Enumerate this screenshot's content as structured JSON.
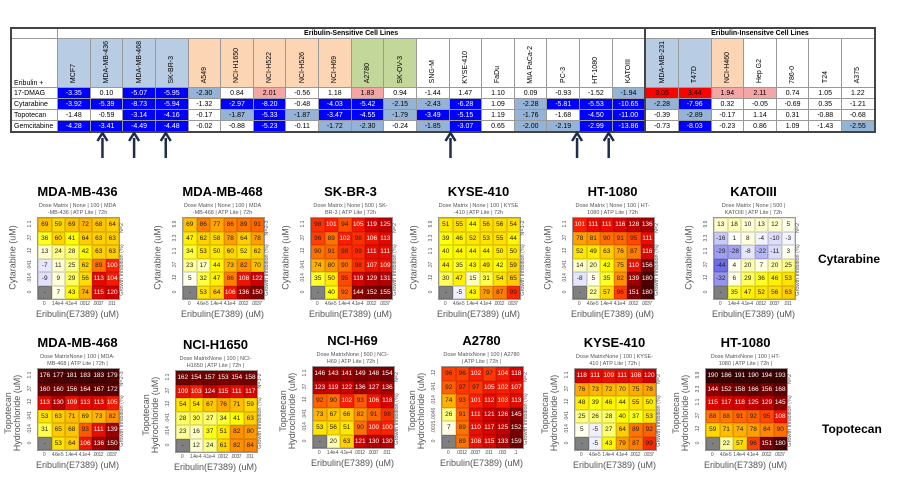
{
  "table": {
    "row_header": "Eribulin +",
    "group_sensitive": "Eribulin-Sensitive Cell Lines",
    "group_insensitive": "Eribulin-Insensitve Cell Lines",
    "columns": [
      "MCF7",
      "MDA-MB-436",
      "MDA-MB-468",
      "SK-BR-3",
      "A549",
      "NCI-H1650",
      "NCI-H522",
      "NCI-H526",
      "NCI-H69",
      "A2780",
      "SK-OV-3",
      "SNG-M",
      "KYSE-410",
      "FaDu",
      "MIA PaCa-2",
      "PC-3",
      "HT-1080",
      "KATOIII",
      "MDA-MB-231",
      "T47D",
      "NCI-H460",
      "Hep G2",
      "786-0",
      "T24",
      "A375"
    ],
    "sensitive_count": 18,
    "header_colors": [
      "#b8cce4",
      "#b8cce4",
      "#b8cce4",
      "#b8cce4",
      "#fcd5b4",
      "#fcd5b4",
      "#fcd5b4",
      "#fcd5b4",
      "#fcd5b4",
      "#c4d79b",
      "#c4d79b",
      "#ffffff",
      "#ffffff",
      "#ffffff",
      "#ffffff",
      "#ffffff",
      "#ffffff",
      "#ffffff",
      "#b8cce4",
      "#b8cce4",
      "#fcd5b4",
      "#ffffff",
      "#ffffff",
      "#ffffff",
      "#ffffff"
    ],
    "rows": [
      {
        "label": "17-DMAG",
        "values": [
          "-3.35",
          "0.10",
          "-5.07",
          "-5.95",
          "-2.30",
          "0.84",
          "2.01",
          "-0.56",
          "1.18",
          "1.83",
          "0.94",
          "-1.44",
          "1.47",
          "1.10",
          "0.09",
          "-0.93",
          "-1.52",
          "-1.94",
          "3.05",
          "3.44",
          "1.94",
          "2.11",
          "0.74",
          "1.05",
          "1.22"
        ]
      },
      {
        "label": "Cytarabine",
        "values": [
          "-3.92",
          "-5.39",
          "-8.73",
          "-5.94",
          "-1.32",
          "-2.97",
          "-8.20",
          "-0.48",
          "-4.03",
          "-5.42",
          "-2.15",
          "-2.43",
          "-6.28",
          "1.09",
          "-2.28",
          "-5.81",
          "-5.53",
          "-10.65",
          "-2.28",
          "-7.96",
          "0.32",
          "-0.05",
          "-0.69",
          "0.35",
          "-1.21"
        ]
      },
      {
        "label": "Topotecan",
        "values": [
          "-1.48",
          "-0.59",
          "-3.14",
          "-4.16",
          "-0.17",
          "-1.87",
          "-5.33",
          "-1.87",
          "-3.47",
          "-4.55",
          "-1.79",
          "-3.49",
          "-5.15",
          "1.19",
          "-1.76",
          "-1.68",
          "-4.50",
          "-11.00",
          "-0.39",
          "-2.89",
          "-0.17",
          "1.14",
          "0.31",
          "-0.88",
          "-0.68"
        ]
      },
      {
        "label": "Gemcitabine",
        "values": [
          "-4.28",
          "-3.41",
          "-4.49",
          "-4.48",
          "-0.02",
          "-0.88",
          "-5.23",
          "-0.11",
          "-1.72",
          "-2.30",
          "-0.24",
          "-1.85",
          "-3.07",
          "0.65",
          "-2.00",
          "-2.19",
          "-2.99",
          "-13.86",
          "-0.73",
          "-8.03",
          "-0.23",
          "0.86",
          "1.09",
          "-1.43",
          "-2.55"
        ]
      }
    ],
    "colors": {
      "strong_neg": "#0000ff",
      "weak_neg": "#95b3d7",
      "strong_pos": "#ff0000",
      "weak_pos": "#f4a6a6"
    },
    "arrow_columns": [
      "MDA-MB-436",
      "MDA-MB-468",
      "SK-BR-3",
      "KYSE-410",
      "HT-1080",
      "KATOIII"
    ]
  },
  "row_labels": {
    "cytarabine": "Cytarabine",
    "topotecan": "Topotecan"
  },
  "chart_data": [
    {
      "type": "heatmap",
      "title": "MDA-MB-436",
      "sub1": "Dose Matrix | None | 100 | MDA",
      "sub2": "-MB-436 | ATP Lite | 72h",
      "n": "N=2",
      "ylabel": "Cytarabine (uM)",
      "xlabel": "Eribulin(E7389) (uM)",
      "zlabel": "Growth Inhibition (%)",
      "yticks": [
        "1.1",
        ".37",
        ".12",
        ".041",
        ".014",
        "0"
      ],
      "xticks": [
        "0",
        "1.4e-4",
        "4.1e-4",
        ".0012",
        ".0037",
        ".011"
      ],
      "values": [
        [
          69,
          59,
          69,
          72,
          68,
          64
        ],
        [
          36,
          60,
          41,
          64,
          63,
          63
        ],
        [
          13,
          24,
          28,
          42,
          63,
          63
        ],
        [
          -7,
          11,
          25,
          62,
          89,
          100
        ],
        [
          -9,
          9,
          29,
          56,
          113,
          104
        ],
        [
          null,
          7,
          43,
          74,
          115,
          120
        ]
      ]
    },
    {
      "type": "heatmap",
      "title": "MDA-MB-468",
      "sub1": "Dose Matrix | None | 100 | MDA",
      "sub2": "-MB-468 | ATP Lite | 72h",
      "n": "N=2-3",
      "ylabel": "Cytarabine (uM)",
      "xlabel": "Eribulin(E7389) (uM)",
      "zlabel": "Growth Inhibition (%)",
      "yticks": [
        "9.9",
        "3.3",
        "1.1",
        ".37",
        ".12",
        "0"
      ],
      "xticks": [
        "0",
        "4.6e-5",
        "1.4e-4",
        "4.1e-4",
        ".0012",
        ".0037"
      ],
      "values": [
        [
          69,
          86,
          77,
          86,
          89,
          91
        ],
        [
          47,
          62,
          58,
          78,
          64,
          78
        ],
        [
          34,
          53,
          50,
          60,
          52,
          62
        ],
        [
          23,
          17,
          44,
          73,
          82,
          70
        ],
        [
          5,
          32,
          47,
          86,
          108,
          122
        ],
        [
          null,
          53,
          64,
          106,
          136,
          150
        ]
      ]
    },
    {
      "type": "heatmap",
      "title": "SK-BR-3",
      "sub1": "Dose Matrix | None | 500 | SK-",
      "sub2": "BR-3 | ATP Lite | 72h",
      "n": "N=2",
      "ylabel": "Cytarabine (uM)",
      "xlabel": "Eribulin(E7389) (uM)",
      "zlabel": "Growth Inhibition (%)",
      "yticks": [
        "1.1",
        ".37",
        ".12",
        ".041",
        ".014",
        "0"
      ],
      "xticks": [
        "0",
        "4.6e-5",
        "1.4e-4",
        "4.1e-4",
        ".0012",
        ".0037"
      ],
      "values": [
        [
          98,
          101,
          94,
          105,
          119,
          125
        ],
        [
          96,
          89,
          102,
          98,
          106,
          113
        ],
        [
          90,
          91,
          98,
          99,
          111,
          111
        ],
        [
          74,
          80,
          90,
          98,
          107,
          109
        ],
        [
          35,
          50,
          95,
          119,
          129,
          131
        ],
        [
          null,
          40,
          92,
          144,
          152,
          155
        ]
      ]
    },
    {
      "type": "heatmap",
      "title": "KYSE-410",
      "sub1": "Dose Matrix | None | 100 | KYSE",
      "sub2": "-410 | ATP Lite | 72h",
      "n": "N=1-2",
      "ylabel": "Cytarabine (uM)",
      "xlabel": "Eribulin(E7389) (uM)",
      "zlabel": "Growth Inhibition (%)",
      "yticks": [
        "9.9",
        "3.3",
        "1.1",
        ".37",
        ".12",
        "0"
      ],
      "xticks": [
        "0",
        "4.6e-5",
        "1.4e-4",
        "4.1e-4",
        ".0012",
        ".0037"
      ],
      "values": [
        [
          51,
          55,
          44,
          56,
          56,
          54
        ],
        [
          39,
          46,
          52,
          53,
          55,
          44
        ],
        [
          40,
          44,
          44,
          44,
          50,
          50
        ],
        [
          44,
          35,
          43,
          49,
          42,
          59
        ],
        [
          30,
          47,
          15,
          31,
          54,
          65
        ],
        [
          null,
          -5,
          43,
          79,
          87,
          99
        ]
      ]
    },
    {
      "type": "heatmap",
      "title": "HT-1080",
      "sub1": "Dose Matrix | None | 100 | HT-",
      "sub2": "1080 | ATP Lite | 72h",
      "n": "N=2",
      "ylabel": "Cytarabine (uM)",
      "xlabel": "Eribulin(E7389) (uM)",
      "zlabel": "Growth Inhibition (%)",
      "yticks": [
        "1.1",
        ".37",
        ".12",
        ".041",
        ".014",
        "0"
      ],
      "xticks": [
        "0",
        "4.6e-5",
        "1.4e-4",
        "4.1e-4",
        ".0012",
        ".0037"
      ],
      "values": [
        [
          101,
          111,
          111,
          116,
          128,
          136
        ],
        [
          78,
          81,
          90,
          91,
          95,
          111
        ],
        [
          52,
          49,
          63,
          76,
          87,
          116
        ],
        [
          14,
          20,
          42,
          75,
          110,
          156
        ],
        [
          -8,
          5,
          35,
          82,
          139,
          180
        ],
        [
          null,
          22,
          57,
          96,
          151,
          180
        ]
      ]
    },
    {
      "type": "heatmap",
      "title": "KATOIII",
      "sub1": "Dose Matrix | None | 500 |",
      "sub2": "KATOIII | ATP Lite | 72h",
      "n": "N=2",
      "ylabel": "Cytarabine (uM)",
      "xlabel": "Eribulin(E7389) (uM)",
      "zlabel": "Growth Inhibition (%)",
      "yticks": [
        "9.9",
        "3.3",
        "1.1",
        ".37",
        ".12",
        "0"
      ],
      "xticks": [
        "0",
        "1.4e-4",
        "4.1e-4",
        ".0012",
        ".0037",
        ".011"
      ],
      "values": [
        [
          13,
          18,
          10,
          13,
          12,
          5
        ],
        [
          -16,
          1,
          8,
          -4,
          -10,
          -3
        ],
        [
          -29,
          -28,
          -8,
          -22,
          -11,
          3
        ],
        [
          -44,
          4,
          20,
          7,
          20,
          25
        ],
        [
          -32,
          6,
          29,
          36,
          46,
          53
        ],
        [
          null,
          35,
          47,
          52,
          56,
          63
        ]
      ]
    },
    {
      "type": "heatmap",
      "title": "MDA-MB-468",
      "sub1": "Dose MatrixNone | 100 | MDA-",
      "sub2": "MB-468 | ATP Lite | 72h |",
      "n": "N=2-3",
      "ylabel": "Topotecan Hydrochloride (uM)",
      "xlabel": "Eribulin(E7389) (uM)",
      "zlabel": "Growth Inhibition (%)",
      "yticks": [
        "1.1",
        ".37",
        ".12",
        ".041",
        ".014",
        "0"
      ],
      "xticks": [
        "0",
        "4.6e-5",
        "1.4e-4",
        "4.1e-4",
        ".0012",
        ".0037"
      ],
      "values": [
        [
          176,
          177,
          181,
          183,
          183,
          179
        ],
        [
          160,
          160,
          156,
          164,
          167,
          172
        ],
        [
          113,
          130,
          109,
          113,
          113,
          105
        ],
        [
          53,
          63,
          71,
          69,
          73,
          82
        ],
        [
          31,
          65,
          68,
          93,
          111,
          139
        ],
        [
          null,
          53,
          64,
          106,
          136,
          150
        ]
      ]
    },
    {
      "type": "heatmap",
      "title": "NCI-H1650",
      "sub1": "Dose MatrixNone | 100 | NCI-",
      "sub2": "H1650 | ATP Lite | 72h |",
      "n": "N=1-2",
      "ylabel": "Topotecan Hydrochloride (uM)",
      "xlabel": "Eribulin(E7389) (uM)",
      "zlabel": "Growth Inhibition (%)",
      "yticks": [
        "1.1",
        ".37",
        ".12",
        ".041",
        ".014",
        "0"
      ],
      "xticks": [
        "0",
        "1.4e-4",
        "4.1e-4",
        ".0012",
        ".0037",
        ".011"
      ],
      "values": [
        [
          162,
          154,
          157,
          153,
          154,
          158
        ],
        [
          109,
          103,
          124,
          115,
          111,
          117
        ],
        [
          54,
          54,
          67,
          76,
          71,
          59
        ],
        [
          28,
          30,
          27,
          34,
          41,
          63
        ],
        [
          23,
          16,
          37,
          51,
          82,
          80
        ],
        [
          null,
          12,
          24,
          61,
          82,
          84
        ]
      ]
    },
    {
      "type": "heatmap",
      "title": "NCI-H69",
      "sub1": "Dose MatrixNone | 500 | NCI-",
      "sub2": "H69 | ATP Lite | 72h |",
      "n": "N=2",
      "ylabel": "Topotecan Hydrochloride (uM)",
      "xlabel": "Eribulin(E7389) (uM)",
      "zlabel": "Growth Inhibition (%)",
      "yticks": [
        "1.1",
        ".37",
        ".12",
        ".041",
        ".014",
        "0"
      ],
      "xticks": [
        "0",
        "1.4e-4",
        "4.1e-4",
        ".0012",
        ".0037",
        ".011"
      ],
      "values": [
        [
          146,
          143,
          141,
          149,
          148,
          154
        ],
        [
          123,
          119,
          122,
          136,
          127,
          136
        ],
        [
          92,
          90,
          102,
          93,
          106,
          118
        ],
        [
          73,
          67,
          66,
          82,
          91,
          98
        ],
        [
          53,
          56,
          51,
          90,
          100,
          100
        ],
        [
          null,
          20,
          63,
          121,
          130,
          130
        ]
      ]
    },
    {
      "type": "heatmap",
      "title": "A2780",
      "sub1": "Dose MatrixNone | 100 | A2780",
      "sub2": "| ATP Lite | 72h |",
      "n": "N=2",
      "ylabel": "Topotecan Hydrochloride (uM)",
      "xlabel": "Eribulin(E7389) (uM)",
      "zlabel": "Growth Inhibition (%)",
      "yticks": [
        ".12",
        ".041",
        ".014",
        ".0046",
        ".0015",
        "0"
      ],
      "xticks": [
        "0",
        ".0012",
        ".0037",
        ".011",
        ".033",
        ".1"
      ],
      "values": [
        [
          96,
          96,
          102,
          97,
          104,
          118
        ],
        [
          92,
          97,
          97,
          105,
          102,
          107
        ],
        [
          74,
          93,
          101,
          112,
          103,
          113
        ],
        [
          26,
          91,
          111,
          121,
          126,
          145
        ],
        [
          7,
          89,
          110,
          117,
          125,
          152
        ],
        [
          null,
          89,
          108,
          115,
          133,
          159
        ]
      ]
    },
    {
      "type": "heatmap",
      "title": "KYSE-410",
      "sub1": "Dose MatrixNone | 100 | KYSE-",
      "sub2": "410 | ATP Lite | 72h |",
      "n": "N=2",
      "ylabel": "Topotecan Hydrochloride (uM)",
      "xlabel": "Eribulin(E7389) (uM)",
      "zlabel": "Growth Inhibition (%)",
      "yticks": [
        "1.1",
        ".37",
        ".12",
        ".041",
        ".014",
        "0"
      ],
      "xticks": [
        "0",
        "4.6e-5",
        "1.4e-4",
        "4.1e-4",
        ".0012",
        ".0037"
      ],
      "values": [
        [
          118,
          111,
          109,
          111,
          108,
          120
        ],
        [
          76,
          73,
          72,
          70,
          75,
          78
        ],
        [
          48,
          39,
          46,
          44,
          55,
          50
        ],
        [
          25,
          26,
          28,
          40,
          37,
          53
        ],
        [
          5,
          -5,
          27,
          64,
          89,
          92
        ],
        [
          null,
          -5,
          43,
          79,
          87,
          99
        ]
      ]
    },
    {
      "type": "heatmap",
      "title": "HT-1080",
      "sub1": "Dose MatrixNone | 100 | HT-",
      "sub2": "1080 | ATP Lite | 72h |",
      "n": "N=2",
      "ylabel": "Topotecan Hydrochloride (uM)",
      "xlabel": "Eribulin(E7389) (uM)",
      "zlabel": "Growth Inhibition (%)",
      "yticks": [
        "9.9",
        "3.3",
        "1.1",
        ".37",
        ".12",
        "0"
      ],
      "xticks": [
        "0",
        "4.6e-5",
        "1.4e-4",
        "4.1e-4",
        ".0012",
        ".0037"
      ],
      "values": [
        [
          190,
          186,
          191,
          190,
          194,
          193
        ],
        [
          144,
          152,
          158,
          166,
          156,
          168
        ],
        [
          115,
          117,
          118,
          125,
          129,
          145
        ],
        [
          88,
          88,
          91,
          92,
          95,
          108
        ],
        [
          59,
          71,
          74,
          78,
          84,
          90
        ],
        [
          null,
          22,
          57,
          96,
          151,
          180
        ]
      ]
    }
  ]
}
